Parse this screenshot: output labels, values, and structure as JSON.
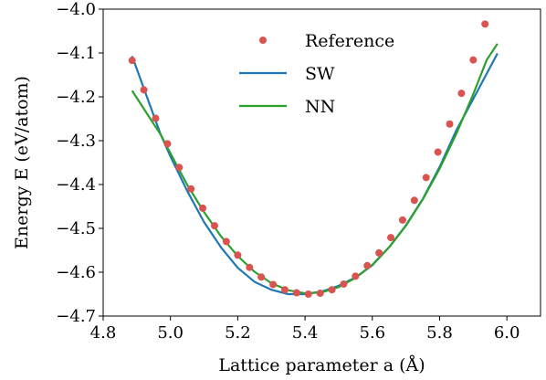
{
  "chart_data": {
    "type": "scatter+line",
    "xlabel": "Lattice parameter a (Å)",
    "ylabel": "Energy E (eV/atom)",
    "xlim": [
      4.8,
      6.1
    ],
    "ylim": [
      -4.7,
      -4.0
    ],
    "xticks": [
      "4.8",
      "5.0",
      "5.2",
      "5.4",
      "5.6",
      "5.8",
      "6.0"
    ],
    "yticks": [
      "−4.0",
      "−4.1",
      "−4.2",
      "−4.3",
      "−4.4",
      "−4.5",
      "−4.6",
      "−4.7"
    ],
    "legend_position": "top-center",
    "series": [
      {
        "name": "Reference",
        "kind": "scatter",
        "color": "#d9534f",
        "points": [
          [
            4.886,
            -4.117
          ],
          [
            4.921,
            -4.184
          ],
          [
            4.956,
            -4.249
          ],
          [
            4.991,
            -4.307
          ],
          [
            5.026,
            -4.361
          ],
          [
            5.061,
            -4.41
          ],
          [
            5.096,
            -4.454
          ],
          [
            5.131,
            -4.494
          ],
          [
            5.166,
            -4.53
          ],
          [
            5.2,
            -4.561
          ],
          [
            5.235,
            -4.589
          ],
          [
            5.27,
            -4.611
          ],
          [
            5.305,
            -4.628
          ],
          [
            5.34,
            -4.64
          ],
          [
            5.375,
            -4.647
          ],
          [
            5.41,
            -4.65
          ],
          [
            5.445,
            -4.648
          ],
          [
            5.48,
            -4.64
          ],
          [
            5.515,
            -4.627
          ],
          [
            5.55,
            -4.609
          ],
          [
            5.585,
            -4.585
          ],
          [
            5.62,
            -4.556
          ],
          [
            5.655,
            -4.521
          ],
          [
            5.69,
            -4.481
          ],
          [
            5.725,
            -4.436
          ],
          [
            5.76,
            -4.384
          ],
          [
            5.795,
            -4.326
          ],
          [
            5.83,
            -4.262
          ],
          [
            5.865,
            -4.192
          ],
          [
            5.9,
            -4.116
          ],
          [
            5.935,
            -4.034
          ]
        ]
      },
      {
        "name": "SW",
        "kind": "line",
        "color": "#1f77b4",
        "points": [
          [
            4.886,
            -4.107
          ],
          [
            4.93,
            -4.2
          ],
          [
            4.97,
            -4.284
          ],
          [
            5.0,
            -4.336
          ],
          [
            5.05,
            -4.415
          ],
          [
            5.1,
            -4.486
          ],
          [
            5.15,
            -4.543
          ],
          [
            5.2,
            -4.59
          ],
          [
            5.25,
            -4.622
          ],
          [
            5.3,
            -4.64
          ],
          [
            5.35,
            -4.65
          ],
          [
            5.4,
            -4.65
          ],
          [
            5.45,
            -4.644
          ],
          [
            5.5,
            -4.631
          ],
          [
            5.55,
            -4.612
          ],
          [
            5.6,
            -4.584
          ],
          [
            5.65,
            -4.543
          ],
          [
            5.7,
            -4.493
          ],
          [
            5.75,
            -4.433
          ],
          [
            5.8,
            -4.36
          ],
          [
            5.85,
            -4.276
          ],
          [
            5.9,
            -4.205
          ],
          [
            5.972,
            -4.101
          ]
        ]
      },
      {
        "name": "NN",
        "kind": "line",
        "color": "#2ca02c",
        "points": [
          [
            4.886,
            -4.186
          ],
          [
            4.93,
            -4.238
          ],
          [
            4.97,
            -4.285
          ],
          [
            5.0,
            -4.329
          ],
          [
            5.05,
            -4.401
          ],
          [
            5.1,
            -4.463
          ],
          [
            5.15,
            -4.518
          ],
          [
            5.2,
            -4.563
          ],
          [
            5.25,
            -4.599
          ],
          [
            5.3,
            -4.625
          ],
          [
            5.35,
            -4.641
          ],
          [
            5.4,
            -4.648
          ],
          [
            5.45,
            -4.646
          ],
          [
            5.5,
            -4.634
          ],
          [
            5.55,
            -4.613
          ],
          [
            5.6,
            -4.583
          ],
          [
            5.65,
            -4.543
          ],
          [
            5.7,
            -4.494
          ],
          [
            5.75,
            -4.434
          ],
          [
            5.8,
            -4.364
          ],
          [
            5.85,
            -4.284
          ],
          [
            5.9,
            -4.194
          ],
          [
            5.94,
            -4.116
          ],
          [
            5.972,
            -4.079
          ]
        ]
      }
    ]
  }
}
